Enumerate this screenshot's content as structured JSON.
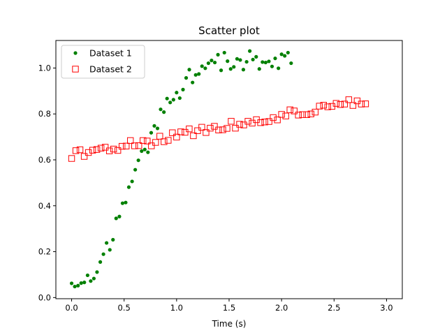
{
  "chart_data": {
    "type": "scatter",
    "title": "Scatter plot",
    "xlabel": "Time (s)",
    "ylabel": "",
    "xlim": [
      -0.15,
      3.15
    ],
    "ylim": [
      -0.005,
      1.12
    ],
    "xticks": [
      0.0,
      0.5,
      1.0,
      1.5,
      2.0,
      2.5,
      3.0
    ],
    "xtick_labels": [
      "0.0",
      "0.5",
      "1.0",
      "1.5",
      "2.0",
      "2.5",
      "3.0"
    ],
    "yticks": [
      0.0,
      0.2,
      0.4,
      0.6,
      0.8,
      1.0
    ],
    "ytick_labels": [
      "0.0",
      "0.2",
      "0.4",
      "0.6",
      "0.8",
      "1.0"
    ],
    "grid": false,
    "legend_position": "top-left",
    "series": [
      {
        "name": "Dataset 1",
        "marker": "filled-circle",
        "color": "#008000",
        "points": [
          [
            0.0,
            0.062
          ],
          [
            0.03,
            0.048
          ],
          [
            0.061,
            0.052
          ],
          [
            0.091,
            0.063
          ],
          [
            0.121,
            0.066
          ],
          [
            0.152,
            0.097
          ],
          [
            0.182,
            0.072
          ],
          [
            0.212,
            0.083
          ],
          [
            0.242,
            0.111
          ],
          [
            0.273,
            0.155
          ],
          [
            0.303,
            0.189
          ],
          [
            0.333,
            0.238
          ],
          [
            0.364,
            0.208
          ],
          [
            0.394,
            0.252
          ],
          [
            0.424,
            0.345
          ],
          [
            0.455,
            0.353
          ],
          [
            0.485,
            0.411
          ],
          [
            0.515,
            0.414
          ],
          [
            0.545,
            0.481
          ],
          [
            0.576,
            0.506
          ],
          [
            0.606,
            0.557
          ],
          [
            0.636,
            0.598
          ],
          [
            0.667,
            0.638
          ],
          [
            0.697,
            0.645
          ],
          [
            0.727,
            0.633
          ],
          [
            0.758,
            0.718
          ],
          [
            0.788,
            0.748
          ],
          [
            0.818,
            0.737
          ],
          [
            0.848,
            0.82
          ],
          [
            0.879,
            0.808
          ],
          [
            0.909,
            0.867
          ],
          [
            0.939,
            0.85
          ],
          [
            0.97,
            0.862
          ],
          [
            1.0,
            0.893
          ],
          [
            1.03,
            0.869
          ],
          [
            1.061,
            0.906
          ],
          [
            1.091,
            0.957
          ],
          [
            1.121,
            0.993
          ],
          [
            1.152,
            0.937
          ],
          [
            1.182,
            0.97
          ],
          [
            1.212,
            0.974
          ],
          [
            1.242,
            1.008
          ],
          [
            1.273,
            0.999
          ],
          [
            1.303,
            1.021
          ],
          [
            1.333,
            1.033
          ],
          [
            1.364,
            1.024
          ],
          [
            1.394,
            1.058
          ],
          [
            1.424,
            0.99
          ],
          [
            1.455,
            1.067
          ],
          [
            1.485,
            1.03
          ],
          [
            1.515,
            0.996
          ],
          [
            1.545,
            1.005
          ],
          [
            1.576,
            1.04
          ],
          [
            1.606,
            1.035
          ],
          [
            1.636,
            0.993
          ],
          [
            1.667,
            1.027
          ],
          [
            1.697,
            1.074
          ],
          [
            1.727,
            1.037
          ],
          [
            1.758,
            1.049
          ],
          [
            1.788,
            0.996
          ],
          [
            1.818,
            1.026
          ],
          [
            1.848,
            1.024
          ],
          [
            1.879,
            1.029
          ],
          [
            1.909,
            1.007
          ],
          [
            1.939,
            1.042
          ],
          [
            1.97,
            0.999
          ],
          [
            2.0,
            1.06
          ],
          [
            2.03,
            1.053
          ],
          [
            2.061,
            1.067
          ],
          [
            2.091,
            1.021
          ]
        ]
      },
      {
        "name": "Dataset 2",
        "marker": "hollow-square",
        "color": "#ff0000",
        "points": [
          [
            0.0,
            0.606
          ],
          [
            0.04,
            0.64
          ],
          [
            0.08,
            0.644
          ],
          [
            0.12,
            0.615
          ],
          [
            0.16,
            0.632
          ],
          [
            0.2,
            0.642
          ],
          [
            0.24,
            0.645
          ],
          [
            0.28,
            0.651
          ],
          [
            0.32,
            0.655
          ],
          [
            0.36,
            0.639
          ],
          [
            0.4,
            0.647
          ],
          [
            0.44,
            0.641
          ],
          [
            0.48,
            0.659
          ],
          [
            0.52,
            0.66
          ],
          [
            0.56,
            0.684
          ],
          [
            0.6,
            0.661
          ],
          [
            0.64,
            0.662
          ],
          [
            0.68,
            0.684
          ],
          [
            0.72,
            0.682
          ],
          [
            0.76,
            0.661
          ],
          [
            0.8,
            0.676
          ],
          [
            0.84,
            0.703
          ],
          [
            0.88,
            0.679
          ],
          [
            0.92,
            0.685
          ],
          [
            0.96,
            0.718
          ],
          [
            1.0,
            0.699
          ],
          [
            1.04,
            0.722
          ],
          [
            1.08,
            0.72
          ],
          [
            1.12,
            0.735
          ],
          [
            1.16,
            0.705
          ],
          [
            1.2,
            0.727
          ],
          [
            1.24,
            0.742
          ],
          [
            1.28,
            0.719
          ],
          [
            1.32,
            0.738
          ],
          [
            1.36,
            0.746
          ],
          [
            1.4,
            0.73
          ],
          [
            1.44,
            0.731
          ],
          [
            1.48,
            0.737
          ],
          [
            1.52,
            0.768
          ],
          [
            1.56,
            0.738
          ],
          [
            1.6,
            0.755
          ],
          [
            1.64,
            0.752
          ],
          [
            1.68,
            0.768
          ],
          [
            1.72,
            0.76
          ],
          [
            1.76,
            0.775
          ],
          [
            1.8,
            0.762
          ],
          [
            1.84,
            0.765
          ],
          [
            1.88,
            0.767
          ],
          [
            1.92,
            0.784
          ],
          [
            1.96,
            0.774
          ],
          [
            2.0,
            0.798
          ],
          [
            2.04,
            0.791
          ],
          [
            2.08,
            0.818
          ],
          [
            2.12,
            0.813
          ],
          [
            2.16,
            0.795
          ],
          [
            2.2,
            0.797
          ],
          [
            2.24,
            0.797
          ],
          [
            2.28,
            0.8
          ],
          [
            2.32,
            0.808
          ],
          [
            2.36,
            0.834
          ],
          [
            2.4,
            0.838
          ],
          [
            2.44,
            0.831
          ],
          [
            2.48,
            0.833
          ],
          [
            2.52,
            0.846
          ],
          [
            2.56,
            0.841
          ],
          [
            2.6,
            0.843
          ],
          [
            2.64,
            0.862
          ],
          [
            2.68,
            0.837
          ],
          [
            2.72,
            0.857
          ],
          [
            2.76,
            0.843
          ],
          [
            2.8,
            0.844
          ]
        ]
      }
    ]
  }
}
